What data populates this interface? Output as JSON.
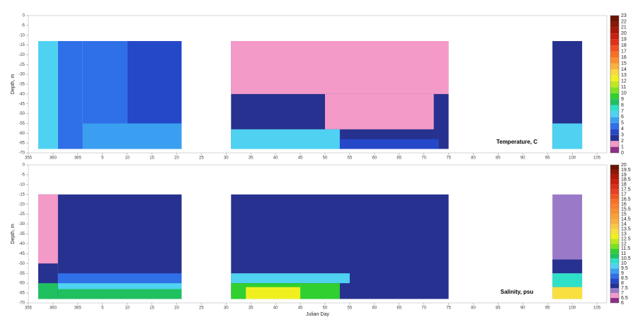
{
  "chart_data": [
    {
      "type": "contour",
      "annotation": "Temperature, C",
      "ylabel": "Depth, m",
      "xlim": [
        355,
        472
      ],
      "xticks": [
        355,
        360,
        365,
        {
          "value": 370,
          "label": "5"
        },
        {
          "value": 375,
          "label": "10"
        },
        {
          "value": 380,
          "label": "15"
        },
        {
          "value": 385,
          "label": "20"
        },
        {
          "value": 390,
          "label": "25"
        },
        {
          "value": 395,
          "label": "30"
        },
        {
          "value": 400,
          "label": "35"
        },
        {
          "value": 405,
          "label": "40"
        },
        {
          "value": 410,
          "label": "45"
        },
        {
          "value": 415,
          "label": "50"
        },
        {
          "value": 420,
          "label": "55"
        },
        {
          "value": 425,
          "label": "60"
        },
        {
          "value": 430,
          "label": "65"
        },
        {
          "value": 435,
          "label": "70"
        },
        {
          "value": 440,
          "label": "75"
        },
        {
          "value": 445,
          "label": "80"
        },
        {
          "value": 450,
          "label": "85"
        },
        {
          "value": 455,
          "label": "90"
        },
        {
          "value": 460,
          "label": "95"
        },
        {
          "value": 465,
          "label": "100"
        },
        {
          "value": 470,
          "label": "105"
        }
      ],
      "ylim": [
        -70,
        0
      ],
      "yticks": [
        0,
        -5,
        -10,
        -15,
        -20,
        -25,
        -30,
        -35,
        -40,
        -45,
        -50,
        -55,
        -60,
        -65,
        -70
      ],
      "colorbar": {
        "ticks": [
          0,
          1,
          2,
          3,
          4,
          5,
          6,
          7,
          8,
          9,
          10,
          11,
          12,
          13,
          14,
          15,
          16,
          17,
          18,
          19,
          20,
          21,
          22,
          23
        ],
        "colors": [
          "#8e2f86",
          "#f49ac8",
          "#27318f",
          "#2448c8",
          "#2f6fe8",
          "#3a9ff0",
          "#4fd2f2",
          "#2fe0c8",
          "#1fc060",
          "#30d030",
          "#80e020",
          "#c0e820",
          "#f0f020",
          "#f8d840",
          "#f8b040",
          "#f89030",
          "#f87028",
          "#f05020",
          "#e03018",
          "#c82010",
          "#a81808",
          "#8a1806",
          "#6a1404"
        ]
      },
      "patches": [
        {
          "x": [
            357,
            361
          ],
          "depth": [
            -13,
            -68
          ],
          "value": 6.5
        },
        {
          "x": [
            361,
            366
          ],
          "depth": [
            -13,
            -68
          ],
          "value": 4.5
        },
        {
          "x": [
            366,
            375
          ],
          "depth": [
            -13,
            -68
          ],
          "value": 4.5
        },
        {
          "x": [
            375,
            386
          ],
          "depth": [
            -13,
            -68
          ],
          "value": 3.5
        },
        {
          "x": [
            366,
            386
          ],
          "depth": [
            -55,
            -68
          ],
          "value": 5.5
        },
        {
          "x": [
            396,
            440
          ],
          "depth": [
            -13,
            -68
          ],
          "value": 2.5
        },
        {
          "x": [
            396,
            440
          ],
          "depth": [
            -13,
            -40
          ],
          "value": 1.5
        },
        {
          "x": [
            415,
            437
          ],
          "depth": [
            -40,
            -58
          ],
          "value": 1.5
        },
        {
          "x": [
            396,
            418
          ],
          "depth": [
            -58,
            -68
          ],
          "value": 6.5
        },
        {
          "x": [
            418,
            438
          ],
          "depth": [
            -63,
            -68
          ],
          "value": 3.5
        },
        {
          "x": [
            461,
            467
          ],
          "depth": [
            -13,
            -68
          ],
          "value": 2.5
        },
        {
          "x": [
            461,
            467
          ],
          "depth": [
            -55,
            -68
          ],
          "value": 6.5
        }
      ]
    },
    {
      "type": "contour",
      "annotation": "Salinity, psu",
      "ylabel": "Depth, m",
      "xlabel": "Julian Day",
      "xlim": [
        355,
        472
      ],
      "xticks": [
        355,
        360,
        365,
        {
          "value": 370,
          "label": "5"
        },
        {
          "value": 375,
          "label": "10"
        },
        {
          "value": 380,
          "label": "15"
        },
        {
          "value": 385,
          "label": "20"
        },
        {
          "value": 390,
          "label": "25"
        },
        {
          "value": 395,
          "label": "30"
        },
        {
          "value": 400,
          "label": "35"
        },
        {
          "value": 405,
          "label": "40"
        },
        {
          "value": 410,
          "label": "45"
        },
        {
          "value": 415,
          "label": "50"
        },
        {
          "value": 420,
          "label": "55"
        },
        {
          "value": 425,
          "label": "60"
        },
        {
          "value": 430,
          "label": "65"
        },
        {
          "value": 435,
          "label": "70"
        },
        {
          "value": 440,
          "label": "75"
        },
        {
          "value": 445,
          "label": "80"
        },
        {
          "value": 450,
          "label": "85"
        },
        {
          "value": 455,
          "label": "90"
        },
        {
          "value": 460,
          "label": "95"
        },
        {
          "value": 465,
          "label": "100"
        },
        {
          "value": 470,
          "label": "105"
        }
      ],
      "ylim": [
        -70,
        0
      ],
      "yticks": [
        0,
        -5,
        -10,
        -15,
        -20,
        -25,
        -30,
        -35,
        -40,
        -45,
        -50,
        -55,
        -60,
        -65,
        -70
      ],
      "colorbar": {
        "ticks": [
          6,
          6.5,
          7,
          7.5,
          8,
          8.5,
          9,
          9.5,
          10,
          10.5,
          11,
          11.5,
          12,
          12.5,
          13,
          13.5,
          14,
          14.5,
          15,
          15.5,
          16,
          16.5,
          17,
          17.5,
          18,
          18.5,
          19,
          19.5,
          20
        ],
        "colors": [
          "#8e2f86",
          "#f49ac8",
          "#9a7ac8",
          "#27318f",
          "#2448c8",
          "#2f6fe8",
          "#3a9ff0",
          "#4fd2f2",
          "#2fe0c8",
          "#1fc060",
          "#30d030",
          "#80e020",
          "#c0e820",
          "#f0f020",
          "#f8e040",
          "#f8c848",
          "#f8b040",
          "#f8a038",
          "#f89030",
          "#f88030",
          "#f87028",
          "#f05820",
          "#e84020",
          "#d83018",
          "#c82010",
          "#b01808",
          "#901806",
          "#6a1404"
        ]
      },
      "patches": [
        {
          "x": [
            357,
            361
          ],
          "depth": [
            -15,
            -68
          ],
          "value": 7.7
        },
        {
          "x": [
            357,
            361
          ],
          "depth": [
            -15,
            -50
          ],
          "value": 6.7
        },
        {
          "x": [
            357,
            361
          ],
          "depth": [
            -60,
            -68
          ],
          "value": 10.7
        },
        {
          "x": [
            361,
            386
          ],
          "depth": [
            -15,
            -68
          ],
          "value": 7.7
        },
        {
          "x": [
            361,
            386
          ],
          "depth": [
            -55,
            -60
          ],
          "value": 8.7
        },
        {
          "x": [
            361,
            386
          ],
          "depth": [
            -60,
            -63
          ],
          "value": 9.7
        },
        {
          "x": [
            361,
            386
          ],
          "depth": [
            -63,
            -68
          ],
          "value": 10.7
        },
        {
          "x": [
            396,
            440
          ],
          "depth": [
            -15,
            -68
          ],
          "value": 7.7
        },
        {
          "x": [
            396,
            420
          ],
          "depth": [
            -55,
            -60
          ],
          "value": 9.7
        },
        {
          "x": [
            396,
            418
          ],
          "depth": [
            -60,
            -68
          ],
          "value": 11.2
        },
        {
          "x": [
            399,
            410
          ],
          "depth": [
            -62,
            -68
          ],
          "value": 12.7
        },
        {
          "x": [
            461,
            467
          ],
          "depth": [
            -15,
            -68
          ],
          "value": 7.2
        },
        {
          "x": [
            461,
            467
          ],
          "depth": [
            -48,
            -55
          ],
          "value": 7.7
        },
        {
          "x": [
            461,
            467
          ],
          "depth": [
            -55,
            -62
          ],
          "value": 10.2
        },
        {
          "x": [
            461,
            467
          ],
          "depth": [
            -62,
            -68
          ],
          "value": 13.2
        }
      ]
    }
  ]
}
